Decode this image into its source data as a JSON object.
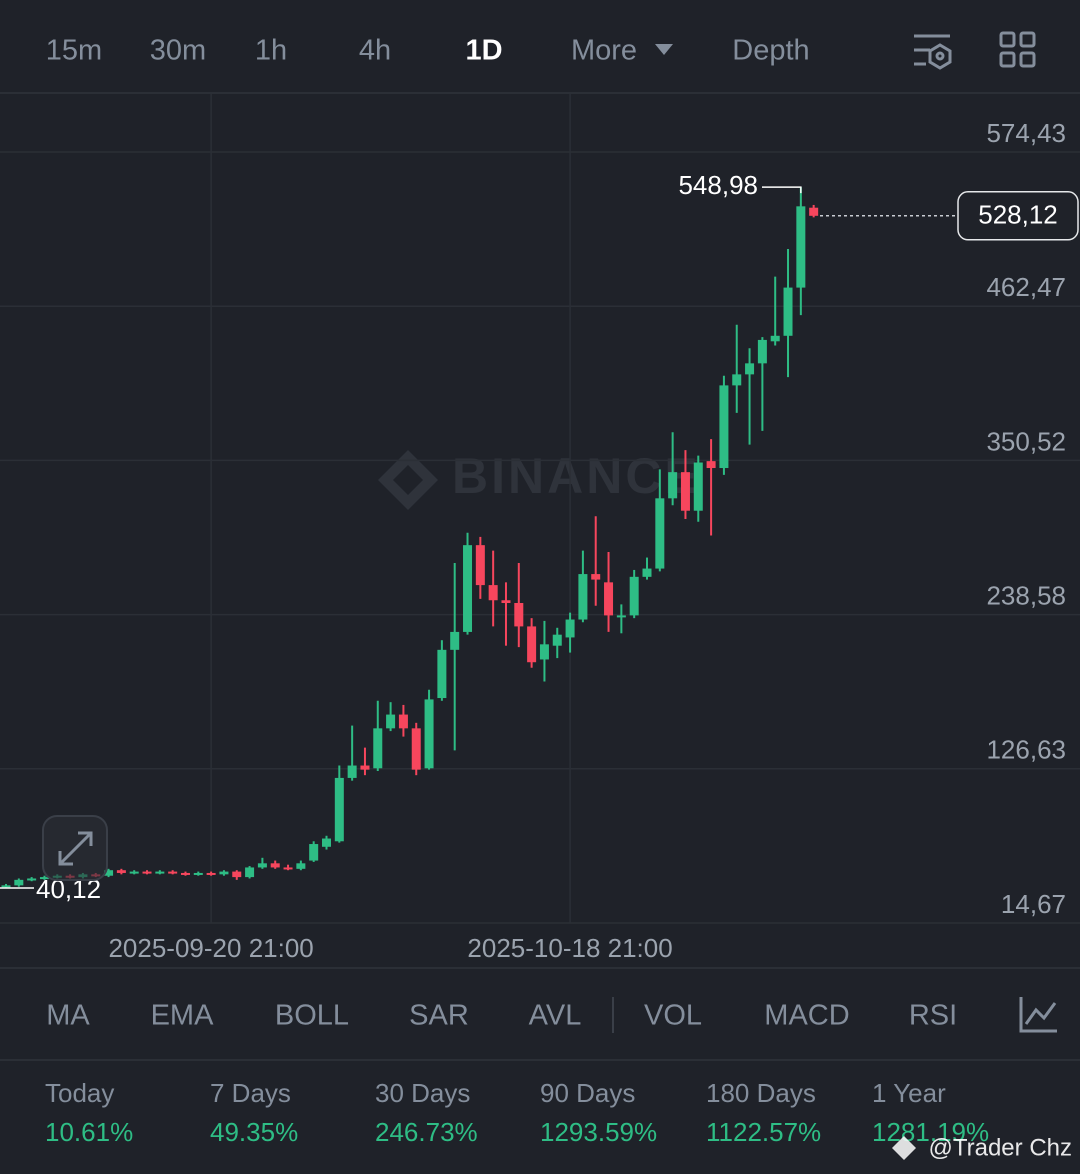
{
  "tabs": [
    "15m",
    "30m",
    "1h",
    "4h",
    "1D",
    "More",
    "Depth"
  ],
  "active_tab": 4,
  "chart_data": {
    "type": "candlestick",
    "watermark": "BINANCE",
    "up_color": "#2ebd85",
    "down_color": "#f6465d",
    "categories": [
      null,
      null,
      null,
      null,
      null,
      null,
      null,
      null,
      null,
      null,
      null,
      null,
      null,
      null,
      null,
      null,
      "2025-09-20 21:00",
      null,
      null,
      null,
      null,
      null,
      null,
      null,
      null,
      null,
      null,
      null,
      null,
      null,
      null,
      null,
      null,
      null,
      null,
      null,
      null,
      null,
      null,
      null,
      null,
      null,
      null,
      null,
      "2025-10-18 21:00",
      null,
      null,
      null,
      null,
      null,
      null,
      null,
      null,
      null,
      null,
      null,
      null,
      null,
      null,
      null,
      null,
      null,
      null,
      null
    ],
    "open": [
      41,
      42,
      46,
      47,
      48,
      49,
      48,
      50,
      49,
      53,
      51,
      52,
      51,
      52,
      51,
      50,
      51,
      50,
      52,
      48,
      55,
      58,
      55,
      54,
      60,
      70,
      74,
      120,
      129,
      127,
      156,
      166,
      156,
      127,
      178,
      213,
      226,
      289,
      260,
      249,
      247,
      230,
      206,
      216,
      222,
      235,
      268,
      262,
      237,
      238,
      266,
      272,
      323,
      342,
      314,
      350,
      345,
      405,
      413,
      421,
      437,
      441,
      476,
      534
    ],
    "high": [
      43,
      47,
      48,
      49,
      50,
      50,
      51,
      51,
      54,
      54,
      53,
      53,
      53,
      53,
      52,
      52,
      52,
      53,
      53,
      56,
      62,
      60,
      57,
      60,
      74,
      78,
      129,
      158,
      142,
      176,
      175,
      173,
      160,
      184,
      220,
      276,
      298,
      295,
      285,
      262,
      276,
      236,
      234,
      229,
      240,
      285,
      310,
      284,
      246,
      271,
      280,
      344,
      371,
      358,
      354,
      366,
      412,
      449,
      432,
      440,
      484,
      504,
      548.98,
      536
    ],
    "low": [
      40.12,
      41,
      45,
      46,
      47,
      47,
      47,
      48,
      48,
      50,
      50,
      50,
      50,
      50,
      49,
      49,
      49,
      49,
      46,
      47,
      54,
      54,
      53,
      53,
      59,
      68,
      73,
      118,
      122,
      125,
      154,
      150,
      122,
      126,
      176,
      140,
      224,
      250,
      230,
      216,
      215,
      200,
      190,
      207,
      211,
      233,
      245,
      226,
      225,
      236,
      264,
      270,
      318,
      308,
      306,
      296,
      340,
      385,
      362,
      372,
      434,
      411,
      456,
      527
    ],
    "close": [
      42,
      46,
      47,
      48,
      49,
      48,
      50,
      49,
      53,
      51,
      52,
      51,
      52,
      51,
      50,
      51,
      50,
      52,
      48,
      55,
      58,
      55,
      54,
      58,
      72,
      76,
      120,
      129,
      126,
      156,
      166,
      156,
      126,
      177,
      213,
      226,
      289,
      260,
      249,
      247,
      230,
      204,
      217,
      224,
      235,
      268,
      264,
      238,
      238,
      266,
      272,
      323,
      342,
      314,
      349,
      345,
      405,
      413,
      421,
      438,
      441,
      476,
      535,
      528.12
    ],
    "ylim": [
      14.67,
      617.28
    ],
    "yticks": [
      {
        "value": 14.67,
        "label": "14,67"
      },
      {
        "value": 126.63,
        "label": "126,63"
      },
      {
        "value": 238.58,
        "label": "238,58"
      },
      {
        "value": 350.52,
        "label": "350,52"
      },
      {
        "value": 462.47,
        "label": "462,47"
      },
      {
        "value": 574.43,
        "label": "574,43"
      }
    ],
    "grid": true,
    "annotations": [
      {
        "value": 548.98,
        "label": "548,98"
      },
      {
        "value": 40.12,
        "label": "40,12"
      },
      {
        "value": 528.12,
        "label": "528,12"
      }
    ]
  },
  "indicators": [
    "MA",
    "EMA",
    "BOLL",
    "SAR",
    "AVL",
    "VOL",
    "MACD",
    "RSI"
  ],
  "stats": [
    {
      "period": "Today",
      "change": "10.61%"
    },
    {
      "period": "7 Days",
      "change": "49.35%"
    },
    {
      "period": "30 Days",
      "change": "246.73%"
    },
    {
      "period": "90 Days",
      "change": "1293.59%"
    },
    {
      "period": "180 Days",
      "change": "1122.57%"
    },
    {
      "period": "1 Year",
      "change": "1281.19%"
    }
  ],
  "watermark": "@Trader Chz"
}
